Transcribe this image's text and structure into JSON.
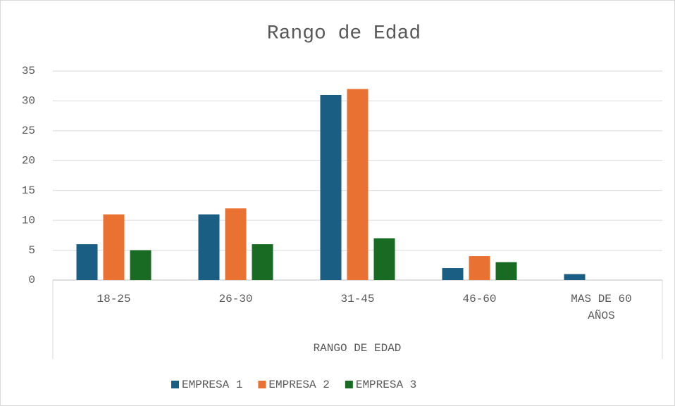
{
  "chart_data": {
    "type": "bar",
    "title": "Rango de Edad",
    "x_label": "RANGO DE EDAD",
    "categories": [
      "18-25",
      "26-30",
      "31-45",
      "46-60",
      "MAS DE 60 AÑOS"
    ],
    "series": [
      {
        "name": "EMPRESA 1",
        "color": "#1b5e83",
        "values": [
          6,
          11,
          31,
          2,
          1
        ]
      },
      {
        "name": "EMPRESA 2",
        "color": "#e97132",
        "values": [
          11,
          12,
          32,
          4,
          0
        ]
      },
      {
        "name": "EMPRESA 3",
        "color": "#196b24",
        "values": [
          5,
          6,
          7,
          3,
          0
        ]
      }
    ],
    "ylim": [
      0,
      35
    ],
    "yticks": [
      0,
      5,
      10,
      15,
      20,
      25,
      30,
      35
    ],
    "grid": true,
    "legend": "bottom"
  }
}
